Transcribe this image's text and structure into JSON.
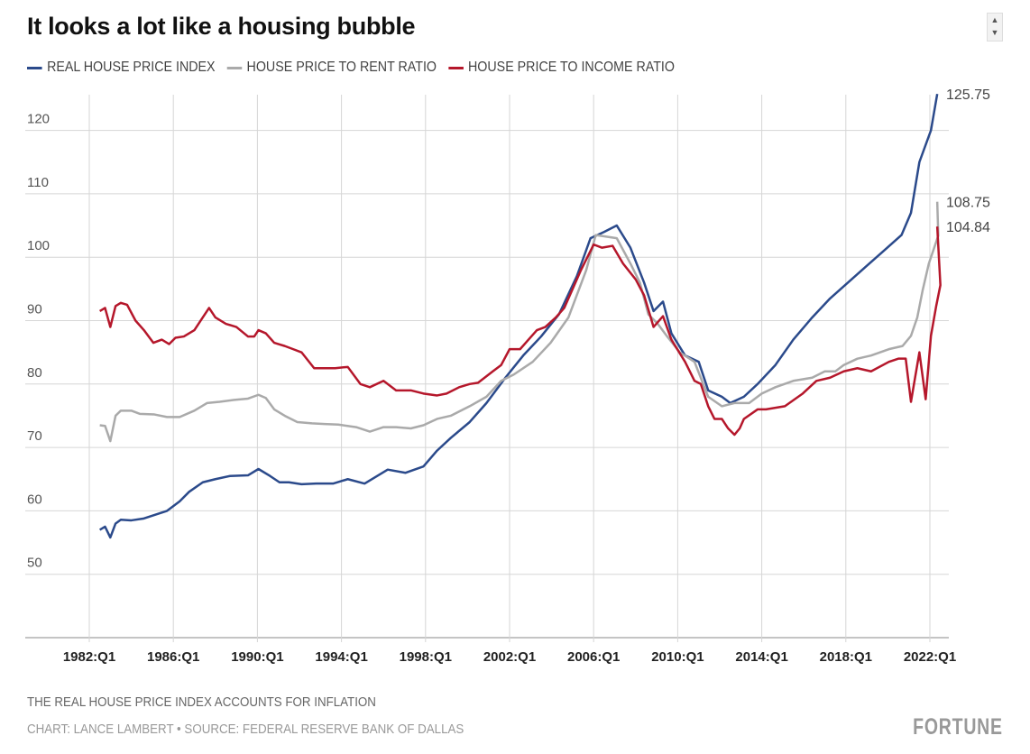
{
  "title": "It looks a lot like a housing bubble",
  "footer": {
    "note": "THE REAL HOUSE PRICE INDEX ACCOUNTS FOR INFLATION",
    "credit": "CHART: LANCE LAMBERT • SOURCE: FEDERAL RESERVE BANK OF DALLAS",
    "logo": "FORTUNE"
  },
  "chart_data": {
    "type": "line",
    "title": "It looks a lot like a housing bubble",
    "xlabel": "",
    "ylabel": "",
    "xlim": [
      1982,
      2022.6
    ],
    "ylim": [
      40,
      126
    ],
    "yticks": [
      40,
      50,
      60,
      70,
      80,
      90,
      100,
      110,
      120
    ],
    "xticks": [
      {
        "t": 1982,
        "label": "1982:Q1"
      },
      {
        "t": 1986,
        "label": "1986:Q1"
      },
      {
        "t": 1990,
        "label": "1990:Q1"
      },
      {
        "t": 1994,
        "label": "1994:Q1"
      },
      {
        "t": 1998,
        "label": "1998:Q1"
      },
      {
        "t": 2002,
        "label": "2002:Q1"
      },
      {
        "t": 2006,
        "label": "2006:Q1"
      },
      {
        "t": 2010,
        "label": "2010:Q1"
      },
      {
        "t": 2014,
        "label": "2014:Q1"
      },
      {
        "t": 2018,
        "label": "2018:Q1"
      },
      {
        "t": 2022,
        "label": "2022:Q1"
      }
    ],
    "grid": true,
    "legend": "top-left",
    "series": [
      {
        "name": "REAL HOUSE PRICE INDEX",
        "color": "#2b4a8b",
        "end_label": "125.75",
        "points": [
          [
            1982.5,
            57
          ],
          [
            1982.75,
            57.5
          ],
          [
            1983,
            55.8
          ],
          [
            1983.25,
            58
          ],
          [
            1983.5,
            58.6
          ],
          [
            1984,
            58.5
          ],
          [
            1984.6,
            58.8
          ],
          [
            1985.7,
            60
          ],
          [
            1986.3,
            61.5
          ],
          [
            1986.75,
            63
          ],
          [
            1987.4,
            64.5
          ],
          [
            1988,
            65
          ],
          [
            1988.7,
            65.5
          ],
          [
            1989.55,
            65.6
          ],
          [
            1990.05,
            66.6
          ],
          [
            1990.6,
            65.5
          ],
          [
            1991.05,
            64.5
          ],
          [
            1991.5,
            64.5
          ],
          [
            1992.1,
            64.2
          ],
          [
            1992.8,
            64.3
          ],
          [
            1993.6,
            64.3
          ],
          [
            1994.3,
            65
          ],
          [
            1995.1,
            64.3
          ],
          [
            1996.2,
            66.5
          ],
          [
            1997.05,
            66
          ],
          [
            1997.9,
            67
          ],
          [
            1998.55,
            69.5
          ],
          [
            1999.2,
            71.5
          ],
          [
            2000.1,
            74
          ],
          [
            2000.9,
            77
          ],
          [
            2001.8,
            81
          ],
          [
            2002.65,
            84.5
          ],
          [
            2003.5,
            87.5
          ],
          [
            2004.35,
            91
          ],
          [
            2005.2,
            97
          ],
          [
            2005.85,
            103
          ],
          [
            2006.5,
            104
          ],
          [
            2007.1,
            105
          ],
          [
            2007.75,
            101.5
          ],
          [
            2008.4,
            96
          ],
          [
            2008.85,
            91.5
          ],
          [
            2009.3,
            93
          ],
          [
            2009.7,
            88
          ],
          [
            2010.35,
            84.5
          ],
          [
            2011,
            83.5
          ],
          [
            2011.45,
            79
          ],
          [
            2012.1,
            78
          ],
          [
            2012.5,
            77
          ],
          [
            2013.15,
            78
          ],
          [
            2013.8,
            80
          ],
          [
            2014.65,
            83
          ],
          [
            2015.5,
            87
          ],
          [
            2016.4,
            90.5
          ],
          [
            2017.25,
            93.5
          ],
          [
            2018.1,
            96
          ],
          [
            2018.95,
            98.5
          ],
          [
            2019.8,
            101
          ],
          [
            2020.65,
            103.5
          ],
          [
            2021.1,
            107
          ],
          [
            2021.5,
            115
          ],
          [
            2022.05,
            120
          ],
          [
            2022.35,
            125.75
          ]
        ]
      },
      {
        "name": "HOUSE PRICE TO RENT RATIO",
        "color": "#aaaaaa",
        "end_label": "108.75",
        "points": [
          [
            1982.5,
            73.5
          ],
          [
            1982.75,
            73.4
          ],
          [
            1983,
            71
          ],
          [
            1983.25,
            75
          ],
          [
            1983.5,
            75.8
          ],
          [
            1984,
            75.8
          ],
          [
            1984.4,
            75.3
          ],
          [
            1985.1,
            75.2
          ],
          [
            1985.7,
            74.8
          ],
          [
            1986.3,
            74.8
          ],
          [
            1987,
            75.8
          ],
          [
            1987.6,
            77
          ],
          [
            1988.2,
            77.2
          ],
          [
            1988.9,
            77.5
          ],
          [
            1989.55,
            77.7
          ],
          [
            1990.05,
            78.3
          ],
          [
            1990.4,
            77.8
          ],
          [
            1990.8,
            76
          ],
          [
            1991.3,
            75
          ],
          [
            1991.9,
            74
          ],
          [
            1992.6,
            73.8
          ],
          [
            1993.2,
            73.7
          ],
          [
            1993.85,
            73.6
          ],
          [
            1994.7,
            73.2
          ],
          [
            1995.35,
            72.5
          ],
          [
            1996,
            73.2
          ],
          [
            1996.6,
            73.2
          ],
          [
            1997.3,
            73
          ],
          [
            1997.9,
            73.5
          ],
          [
            1998.55,
            74.5
          ],
          [
            1999.2,
            75
          ],
          [
            2000.1,
            76.5
          ],
          [
            2000.9,
            78
          ],
          [
            2001.6,
            80.5
          ],
          [
            2002.2,
            81.5
          ],
          [
            2003.1,
            83.5
          ],
          [
            2003.95,
            86.5
          ],
          [
            2004.8,
            90.5
          ],
          [
            2005.65,
            98
          ],
          [
            2006.1,
            103.5
          ],
          [
            2006.5,
            103.3
          ],
          [
            2007.1,
            103
          ],
          [
            2007.75,
            99
          ],
          [
            2008.2,
            96
          ],
          [
            2008.6,
            91
          ],
          [
            2009.05,
            89.5
          ],
          [
            2009.5,
            87.5
          ],
          [
            2010.1,
            85
          ],
          [
            2010.8,
            83.5
          ],
          [
            2011.45,
            78
          ],
          [
            2012.1,
            76.5
          ],
          [
            2012.7,
            77
          ],
          [
            2013.4,
            77
          ],
          [
            2014,
            78.5
          ],
          [
            2014.65,
            79.5
          ],
          [
            2015.5,
            80.5
          ],
          [
            2016.4,
            81
          ],
          [
            2017,
            82
          ],
          [
            2017.5,
            82
          ],
          [
            2017.9,
            83
          ],
          [
            2018.55,
            84
          ],
          [
            2019.2,
            84.5
          ],
          [
            2020.05,
            85.5
          ],
          [
            2020.7,
            86
          ],
          [
            2021.1,
            87.6
          ],
          [
            2021.4,
            90.5
          ],
          [
            2021.65,
            94.7
          ],
          [
            2021.95,
            99
          ],
          [
            2022.4,
            103.4
          ],
          [
            2022.35,
            108.75
          ]
        ]
      },
      {
        "name": "HOUSE PRICE TO INCOME RATIO",
        "color": "#b5172b",
        "end_label": "104.84",
        "points": [
          [
            1982.5,
            91.5
          ],
          [
            1982.75,
            92
          ],
          [
            1983,
            89
          ],
          [
            1983.25,
            92.3
          ],
          [
            1983.5,
            92.8
          ],
          [
            1983.8,
            92.5
          ],
          [
            1984.2,
            90
          ],
          [
            1984.6,
            88.5
          ],
          [
            1985.05,
            86.5
          ],
          [
            1985.45,
            87
          ],
          [
            1985.8,
            86.3
          ],
          [
            1986.1,
            87.3
          ],
          [
            1986.5,
            87.5
          ],
          [
            1987,
            88.5
          ],
          [
            1987.4,
            90.5
          ],
          [
            1987.7,
            92
          ],
          [
            1988,
            90.5
          ],
          [
            1988.5,
            89.5
          ],
          [
            1989,
            89
          ],
          [
            1989.55,
            87.5
          ],
          [
            1989.85,
            87.5
          ],
          [
            1990.05,
            88.5
          ],
          [
            1990.4,
            88
          ],
          [
            1990.8,
            86.5
          ],
          [
            1991.3,
            86
          ],
          [
            1991.7,
            85.5
          ],
          [
            1992.1,
            85
          ],
          [
            1992.7,
            82.5
          ],
          [
            1993.2,
            82.5
          ],
          [
            1993.7,
            82.5
          ],
          [
            1994.3,
            82.7
          ],
          [
            1994.9,
            80
          ],
          [
            1995.35,
            79.5
          ],
          [
            1996,
            80.5
          ],
          [
            1996.6,
            79
          ],
          [
            1997.3,
            79
          ],
          [
            1997.9,
            78.5
          ],
          [
            1998.55,
            78.2
          ],
          [
            1999,
            78.5
          ],
          [
            1999.6,
            79.5
          ],
          [
            2000.1,
            80
          ],
          [
            2000.5,
            80.2
          ],
          [
            2001.2,
            82
          ],
          [
            2001.6,
            83
          ],
          [
            2002,
            85.5
          ],
          [
            2002.5,
            85.5
          ],
          [
            2002.9,
            87
          ],
          [
            2003.3,
            88.5
          ],
          [
            2003.7,
            89
          ],
          [
            2004.2,
            90.5
          ],
          [
            2004.6,
            92
          ],
          [
            2005,
            95
          ],
          [
            2005.4,
            98
          ],
          [
            2006,
            102
          ],
          [
            2006.4,
            101.5
          ],
          [
            2006.9,
            101.8
          ],
          [
            2007.4,
            99
          ],
          [
            2008,
            96.5
          ],
          [
            2008.4,
            94
          ],
          [
            2008.85,
            89
          ],
          [
            2009.3,
            90.7
          ],
          [
            2009.7,
            87
          ],
          [
            2010.35,
            83.5
          ],
          [
            2010.8,
            80.5
          ],
          [
            2011.1,
            80
          ],
          [
            2011.45,
            76.5
          ],
          [
            2011.75,
            74.5
          ],
          [
            2012.1,
            74.5
          ],
          [
            2012.4,
            73
          ],
          [
            2012.7,
            72
          ],
          [
            2012.95,
            73
          ],
          [
            2013.15,
            74.5
          ],
          [
            2013.8,
            76
          ],
          [
            2014.2,
            76
          ],
          [
            2015.1,
            76.5
          ],
          [
            2015.95,
            78.5
          ],
          [
            2016.6,
            80.5
          ],
          [
            2017.25,
            81
          ],
          [
            2017.9,
            82
          ],
          [
            2018.55,
            82.5
          ],
          [
            2019.2,
            82
          ],
          [
            2020.05,
            83.5
          ],
          [
            2020.5,
            84
          ],
          [
            2020.85,
            84
          ],
          [
            2021.1,
            77.2
          ],
          [
            2021.5,
            85
          ],
          [
            2021.8,
            77.6
          ],
          [
            2022.05,
            87.6
          ],
          [
            2022.3,
            92.3
          ],
          [
            2022.5,
            95.6
          ],
          [
            2022.35,
            104.84
          ]
        ]
      }
    ]
  }
}
